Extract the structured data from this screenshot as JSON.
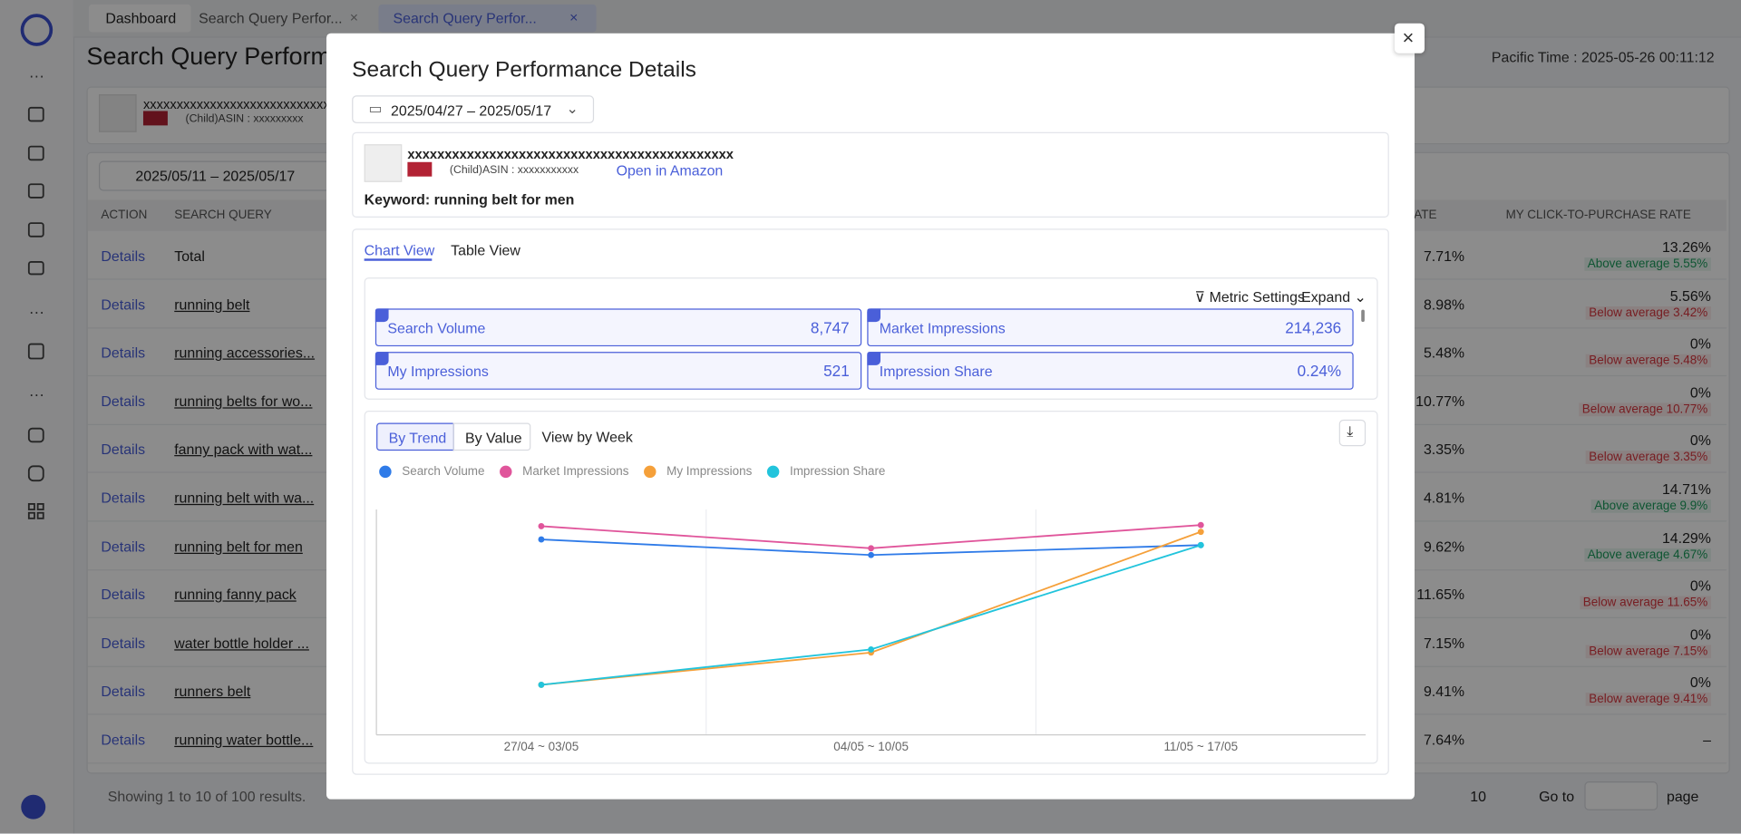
{
  "nav_tabs": [
    "Dashboard",
    "Search Query Perfor...",
    "Search Query Perfor..."
  ],
  "page": {
    "title": "Search Query Performance",
    "time": "Pacific Time : 2025-05-26 00:11:12",
    "product_name": "xxxxxxxxxxxxxxxxxxxxxxxxxxxxxx",
    "asin": "(Child)ASIN : xxxxxxxxx",
    "date_range": "2025/05/11 – 2025/05/17",
    "columns": [
      "ACTION",
      "SEARCH QUERY",
      "RATE",
      "MY CLICK-TO-PURCHASE RATE"
    ],
    "rows": [
      {
        "action": "Details",
        "query": "Total",
        "rate": "7.71%",
        "my_rate": "13.26%",
        "note": "Above average 5.55%",
        "note_color": "#1a9b5b"
      },
      {
        "action": "Details",
        "query": "running belt",
        "rate": "8.98%",
        "my_rate": "5.56%",
        "note": "Below average 3.42%",
        "note_color": "#d9363e"
      },
      {
        "action": "Details",
        "query": "running accessories...",
        "rate": "5.48%",
        "my_rate": "0%",
        "note": "Below average 5.48%",
        "note_color": "#d9363e"
      },
      {
        "action": "Details",
        "query": "running belts for wo...",
        "rate": "10.77%",
        "my_rate": "0%",
        "note": "Below average 10.77%",
        "note_color": "#d9363e"
      },
      {
        "action": "Details",
        "query": "fanny pack with wat...",
        "rate": "3.35%",
        "my_rate": "0%",
        "note": "Below average 3.35%",
        "note_color": "#d9363e"
      },
      {
        "action": "Details",
        "query": "running belt with wa...",
        "rate": "4.81%",
        "my_rate": "14.71%",
        "note": "Above average 9.9%",
        "note_color": "#1a9b5b"
      },
      {
        "action": "Details",
        "query": "running belt for men",
        "rate": "9.62%",
        "my_rate": "14.29%",
        "note": "Above average 4.67%",
        "note_color": "#1a9b5b"
      },
      {
        "action": "Details",
        "query": "running fanny pack",
        "rate": "11.65%",
        "my_rate": "0%",
        "note": "Below average 11.65%",
        "note_color": "#d9363e"
      },
      {
        "action": "Details",
        "query": "water bottle holder ...",
        "rate": "7.15%",
        "my_rate": "0%",
        "note": "Below average 7.15%",
        "note_color": "#d9363e"
      },
      {
        "action": "Details",
        "query": "runners belt",
        "rate": "9.41%",
        "my_rate": "0%",
        "note": "Below average 9.41%",
        "note_color": "#d9363e"
      },
      {
        "action": "Details",
        "query": "running water bottle...",
        "rate": "7.64%",
        "my_rate": "–"
      }
    ],
    "footer": "Showing 1 to 10 of 100 results.",
    "last_page": "10",
    "goto": "Go to",
    "page_word": "page"
  },
  "modal": {
    "title": "Search Query Performance Details",
    "date_range": "2025/04/27 – 2025/05/17",
    "product_name": "xxxxxxxxxxxxxxxxxxxxxxxxxxxxxxxxxxxxxxxxxxxx",
    "asin": "(Child)ASIN : xxxxxxxxxxx",
    "link": "Open in Amazon",
    "keyword": "Keyword: running belt for men",
    "tabs": [
      "Chart View",
      "Table View"
    ],
    "metric_settings": "Metric Settings",
    "expand": "Expand",
    "metrics": [
      {
        "name": "Search Volume",
        "value": "8,747"
      },
      {
        "name": "Market Impressions",
        "value": "214,236"
      },
      {
        "name": "My Impressions",
        "value": "521"
      },
      {
        "name": "Impression Share",
        "value": "0.24%"
      }
    ],
    "modes": [
      "By Trend",
      "By Value"
    ],
    "granularity": "View by Week"
  },
  "chart_data": {
    "type": "line",
    "categories": [
      "27/04 ~ 03/05",
      "04/05 ~ 10/05",
      "11/05 ~ 17/05"
    ],
    "ylim": [
      0,
      100
    ],
    "grid": true,
    "series": [
      {
        "name": "Search Volume",
        "color": "#2f7be8",
        "values": [
          86.7,
          79.8,
          84.2
        ]
      },
      {
        "name": "Market Impressions",
        "color": "#e0559b",
        "values": [
          92.6,
          82.8,
          93.1
        ]
      },
      {
        "name": "My Impressions",
        "color": "#f5a03a",
        "values": [
          22.2,
          36.5,
          90.1
        ]
      },
      {
        "name": "Impression Share",
        "color": "#22c4dc",
        "values": [
          22.2,
          37.9,
          84.2
        ]
      }
    ]
  }
}
